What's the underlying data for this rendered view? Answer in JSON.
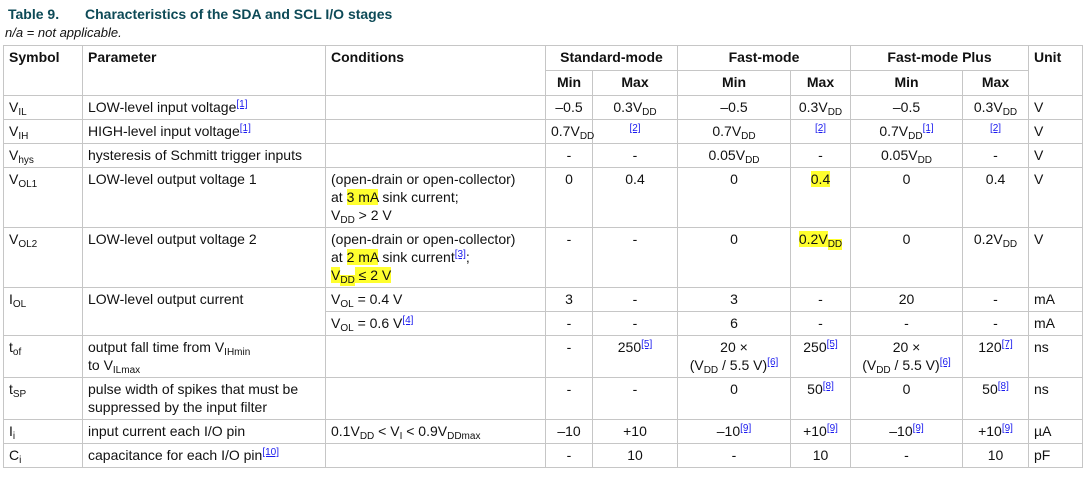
{
  "header": {
    "label": "Table 9.",
    "title": "Characteristics of the SDA and SCL I/O stages",
    "note": "n/a = not applicable."
  },
  "table": {
    "columns": [
      "Symbol",
      "Parameter",
      "Conditions",
      "Standard-mode",
      "Fast-mode",
      "Fast-mode Plus",
      "Unit"
    ],
    "subcolumns": [
      "Min",
      "Max",
      "Min",
      "Max",
      "Min",
      "Max"
    ],
    "rows": [
      [
        [
          [
            "V",
            {
              "text": "IL",
              "sub": true
            }
          ]
        ],
        [
          [
            "LOW-level input voltage",
            {
              "text": "[1]",
              "ref": true
            }
          ]
        ],
        null,
        "–0.5",
        [
          [
            "0.3V",
            {
              "text": "DD",
              "sub": true
            }
          ]
        ],
        "–0.5",
        [
          [
            "0.3V",
            {
              "text": "DD",
              "sub": true
            }
          ]
        ],
        "–0.5",
        [
          [
            "0.3V",
            {
              "text": "DD",
              "sub": true
            }
          ]
        ],
        "V"
      ],
      [
        [
          [
            "V",
            {
              "text": "IH",
              "sub": true
            }
          ]
        ],
        [
          [
            "HIGH-level input voltage",
            {
              "text": "[1]",
              "ref": true
            }
          ]
        ],
        null,
        [
          [
            "0.7V",
            {
              "text": "DD",
              "sub": true
            }
          ]
        ],
        [
          [
            {
              "text": "[2]",
              "ref": true
            }
          ]
        ],
        [
          [
            "0.7V",
            {
              "text": "DD",
              "sub": true
            }
          ]
        ],
        [
          [
            {
              "text": "[2]",
              "ref": true
            }
          ]
        ],
        [
          [
            "0.7V",
            {
              "text": "DD",
              "sub": true
            },
            {
              "text": "[1]",
              "ref": true
            }
          ]
        ],
        [
          [
            {
              "text": "[2]",
              "ref": true
            }
          ]
        ],
        "V"
      ],
      [
        [
          [
            "V",
            {
              "text": "hys",
              "sub": true
            }
          ]
        ],
        "hysteresis of Schmitt trigger inputs",
        null,
        "-",
        "-",
        [
          [
            "0.05V",
            {
              "text": "DD",
              "sub": true
            }
          ]
        ],
        "-",
        [
          [
            "0.05V",
            {
              "text": "DD",
              "sub": true
            }
          ]
        ],
        "-",
        "V"
      ],
      [
        [
          [
            "V",
            {
              "text": "OL1",
              "sub": true
            }
          ]
        ],
        "LOW-level output voltage 1",
        [
          "(open-drain or open-collector)",
          [
            "at ",
            {
              "text": "3 mA",
              "hl": true
            },
            " sink current;"
          ],
          [
            "V",
            {
              "text": "DD",
              "sub": true
            },
            " > 2 V"
          ]
        ],
        "0",
        "0.4",
        "0",
        [
          [
            {
              "text": "0.4",
              "hl": true
            }
          ]
        ],
        "0",
        "0.4",
        "V"
      ],
      [
        [
          [
            "V",
            {
              "text": "OL2",
              "sub": true
            }
          ]
        ],
        "LOW-level output voltage 2",
        [
          "(open-drain or open-collector)",
          [
            "at ",
            {
              "text": "2 mA",
              "hl": true
            },
            " sink current",
            {
              "text": "[3]",
              "ref": true
            },
            ";"
          ],
          [
            {
              "text": "V",
              "hl": true
            },
            {
              "text": "DD",
              "sub": true,
              "hl": true
            },
            {
              "text": " ≤ 2 V",
              "hl": true
            }
          ]
        ],
        "-",
        "-",
        "0",
        [
          [
            {
              "text": "0.2V",
              "hl": true
            },
            {
              "text": "DD",
              "sub": true,
              "hl": true
            }
          ]
        ],
        "0",
        [
          [
            "0.2V",
            {
              "text": "DD",
              "sub": true
            }
          ]
        ],
        "V"
      ],
      [
        [
          [
            "I",
            {
              "text": "OL",
              "sub": true
            }
          ]
        ],
        "LOW-level output current",
        [
          [
            "V",
            {
              "text": "OL",
              "sub": true
            },
            " = 0.4 V"
          ]
        ],
        "3",
        "-",
        "3",
        "-",
        "20",
        "-",
        "mA"
      ],
      [
        [
          [
            "V",
            {
              "text": "OL",
              "sub": true
            },
            " = 0.6 V",
            {
              "text": "[4]",
              "ref": true
            }
          ]
        ],
        "-",
        "-",
        "6",
        "-",
        "-",
        "-",
        "mA"
      ],
      [
        [
          [
            "t",
            {
              "text": "of",
              "sub": true
            }
          ]
        ],
        [
          [
            "output fall time from V",
            {
              "text": "IHmin",
              "sub": true
            }
          ],
          [
            "to V",
            {
              "text": "ILmax",
              "sub": true
            }
          ]
        ],
        null,
        "-",
        [
          [
            "250",
            {
              "text": "[5]",
              "ref": true
            }
          ]
        ],
        [
          "20 ×",
          [
            "(V",
            {
              "text": "DD",
              "sub": true
            },
            " / 5.5 V)",
            {
              "text": "[6]",
              "ref": true
            }
          ]
        ],
        [
          [
            "250",
            {
              "text": "[5]",
              "ref": true
            }
          ]
        ],
        [
          "20 ×",
          [
            "(V",
            {
              "text": "DD",
              "sub": true
            },
            " / 5.5 V)",
            {
              "text": "[6]",
              "ref": true
            }
          ]
        ],
        [
          [
            "120",
            {
              "text": "[7]",
              "ref": true
            }
          ]
        ],
        "ns"
      ],
      [
        [
          [
            "t",
            {
              "text": "SP",
              "sub": true
            }
          ]
        ],
        [
          "pulse width of spikes that must be",
          "suppressed by the input filter"
        ],
        null,
        "-",
        "-",
        "0",
        [
          [
            "50",
            {
              "text": "[8]",
              "ref": true
            }
          ]
        ],
        "0",
        [
          [
            "50",
            {
              "text": "[8]",
              "ref": true
            }
          ]
        ],
        "ns"
      ],
      [
        [
          [
            "I",
            {
              "text": "i",
              "sub": true
            }
          ]
        ],
        "input current each I/O pin",
        [
          [
            "0.1V",
            {
              "text": "DD",
              "sub": true
            },
            " < V",
            {
              "text": "I",
              "sub": true
            },
            " < 0.9V",
            {
              "text": "DDmax",
              "sub": true
            }
          ]
        ],
        "–10",
        "+10",
        [
          [
            "–10",
            {
              "text": "[9]",
              "ref": true
            }
          ]
        ],
        [
          [
            "+10",
            {
              "text": "[9]",
              "ref": true
            }
          ]
        ],
        [
          [
            "–10",
            {
              "text": "[9]",
              "ref": true
            }
          ]
        ],
        [
          [
            "+10",
            {
              "text": "[9]",
              "ref": true
            }
          ]
        ],
        "µA"
      ],
      [
        [
          [
            "C",
            {
              "text": "i",
              "sub": true
            }
          ]
        ],
        [
          [
            "capacitance for each I/O pin",
            {
              "text": "[10]",
              "ref": true
            }
          ]
        ],
        null,
        "-",
        "10",
        "-",
        "10",
        "-",
        "10",
        "pF"
      ]
    ]
  }
}
